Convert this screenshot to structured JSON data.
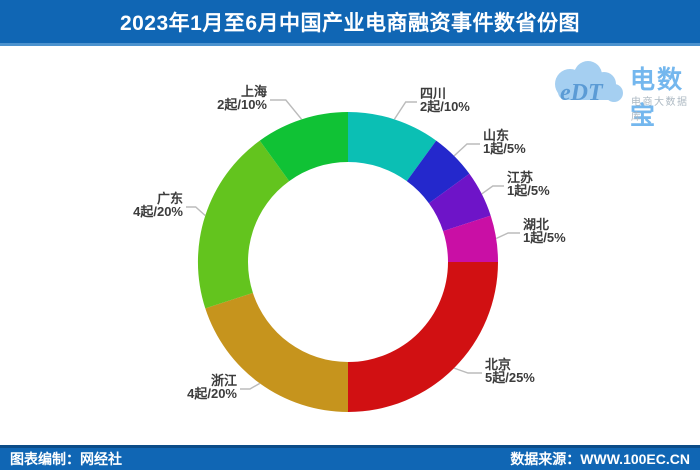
{
  "header": {
    "title": "2023年1月至6月中国产业电商融资事件数省份图"
  },
  "footer": {
    "left": "图表编制：网经社",
    "right": "数据来源：WWW.100EC.CN"
  },
  "logo": {
    "cloud_text": "eDT",
    "brand": "电数宝",
    "subtitle": "电商大数据库"
  },
  "colors": {
    "header_bg": "#1066B4",
    "header_border": "#4C92CE",
    "footer_bg": "#1066B4",
    "label_text": "#3C3C3C",
    "leader_line": "#BBBBBB"
  },
  "chart_data": {
    "type": "pie",
    "donut": true,
    "title": "2023年1月至6月中国产业电商融资事件数省份图",
    "start_angle_deg": 0,
    "direction": "clockwise",
    "legend_position": "none",
    "slices": [
      {
        "key": "sichuan",
        "name": "四川",
        "count": 2,
        "percent": 10,
        "label": "2起/10%",
        "color": "#0BBFB4"
      },
      {
        "key": "shandong",
        "name": "山东",
        "count": 1,
        "percent": 5,
        "label": "1起/5%",
        "color": "#2428CC"
      },
      {
        "key": "jiangsu",
        "name": "江苏",
        "count": 1,
        "percent": 5,
        "label": "1起/5%",
        "color": "#6E14C8"
      },
      {
        "key": "hubei",
        "name": "湖北",
        "count": 1,
        "percent": 5,
        "label": "1起/5%",
        "color": "#C90FA5"
      },
      {
        "key": "beijing",
        "name": "北京",
        "count": 5,
        "percent": 25,
        "label": "5起/25%",
        "color": "#D11012"
      },
      {
        "key": "zhejiang",
        "name": "浙江",
        "count": 4,
        "percent": 20,
        "label": "4起/20%",
        "color": "#C6941D"
      },
      {
        "key": "guangdong",
        "name": "广东",
        "count": 4,
        "percent": 20,
        "label": "4起/20%",
        "color": "#63C41E"
      },
      {
        "key": "shanghai",
        "name": "上海",
        "count": 2,
        "percent": 10,
        "label": "2起/10%",
        "color": "#10C235"
      }
    ]
  }
}
